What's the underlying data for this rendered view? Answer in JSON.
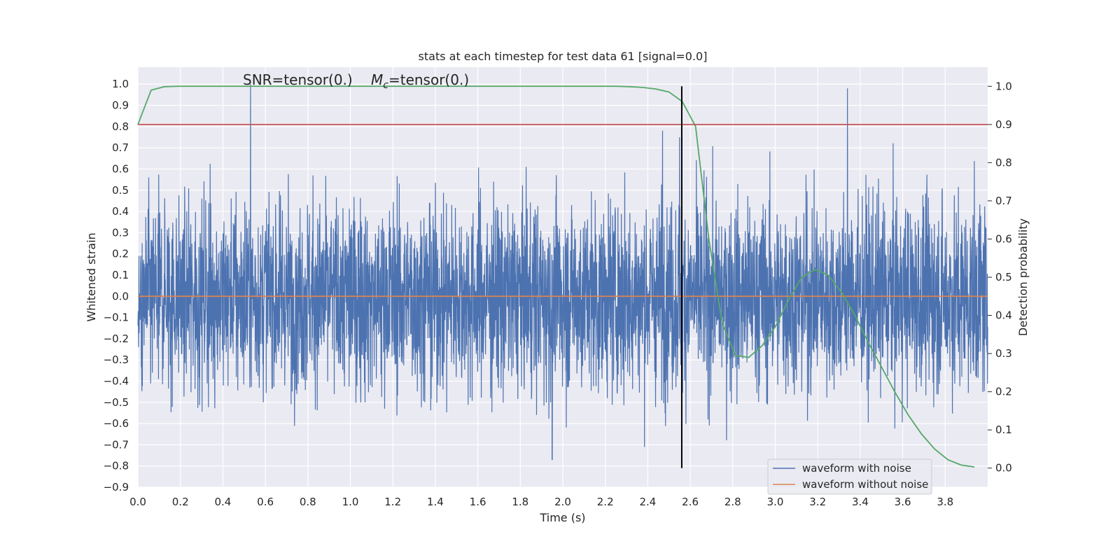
{
  "chart_data": {
    "type": "line",
    "title": "stats at each timestep for test data 61 [signal=0.0]",
    "xlabel": "Time (s)",
    "ylabel_left": "Whitened strain",
    "ylabel_right": "Detection probability",
    "annotation_snr": "SNR=tensor(0.)",
    "annotation_mc_symbol": "M",
    "annotation_mc_sub": "c",
    "annotation_mc_value": "=tensor(0.)",
    "xlim": [
      0.0,
      4.0
    ],
    "ylim_left": [
      -0.9,
      1.08
    ],
    "ylim_right": [
      -0.05,
      1.05
    ],
    "x_ticks": [
      "0.0",
      "0.2",
      "0.4",
      "0.6",
      "0.8",
      "1.0",
      "1.2",
      "1.4",
      "1.6",
      "1.8",
      "2.0",
      "2.2",
      "2.4",
      "2.6",
      "2.8",
      "3.0",
      "3.2",
      "3.4",
      "3.6",
      "3.8"
    ],
    "y_ticks_left": [
      "1.0",
      "0.9",
      "0.8",
      "0.7",
      "0.6",
      "0.5",
      "0.4",
      "0.3",
      "0.2",
      "0.1",
      "0.0",
      "−0.1",
      "−0.2",
      "−0.3",
      "−0.4",
      "−0.5",
      "−0.6",
      "−0.7",
      "−0.8",
      "−0.9"
    ],
    "y_ticks_right": [
      "1.0",
      "0.9",
      "0.8",
      "0.7",
      "0.6",
      "0.5",
      "0.4",
      "0.3",
      "0.2",
      "0.1",
      "0.0"
    ],
    "grid": true,
    "legend_position": "bottom-right",
    "series": [
      {
        "name": "waveform with noise",
        "color": "#4c72b0",
        "axis": "left",
        "style": "dense noise trace",
        "amplitude_typical": 0.3,
        "spikes": [
          {
            "t": 0.53,
            "y": 1.0
          },
          {
            "t": 3.34,
            "y": 0.98
          },
          {
            "t": 1.95,
            "y": -0.77
          },
          {
            "t": 2.55,
            "y": 0.75
          },
          {
            "t": 2.47,
            "y": 0.78
          }
        ]
      },
      {
        "name": "waveform without noise",
        "color": "#dd8452",
        "axis": "left",
        "x": [
          0.0,
          4.0
        ],
        "y": [
          0.0,
          0.0
        ]
      },
      {
        "color": "#55a868",
        "axis": "right",
        "x": [
          0.0,
          0.0625,
          0.125,
          0.1875,
          2.25,
          2.3125,
          2.375,
          2.4375,
          2.5,
          2.5625,
          2.625,
          2.6875,
          2.75,
          2.8125,
          2.875,
          2.9375,
          3.0,
          3.0625,
          3.125,
          3.1875,
          3.25,
          3.3125,
          3.375,
          3.4375,
          3.5,
          3.5625,
          3.625,
          3.6875,
          3.75,
          3.8125,
          3.875,
          3.9375
        ],
        "y": [
          0.9,
          0.99,
          0.999,
          1.0,
          1.0,
          0.999,
          0.997,
          0.993,
          0.985,
          0.96,
          0.895,
          0.6,
          0.38,
          0.295,
          0.29,
          0.32,
          0.37,
          0.44,
          0.5,
          0.52,
          0.505,
          0.46,
          0.4,
          0.33,
          0.265,
          0.2,
          0.14,
          0.09,
          0.05,
          0.022,
          0.008,
          0.003
        ]
      },
      {
        "color": "#c44e52",
        "axis": "right",
        "x": [
          0.0,
          4.0
        ],
        "y": [
          0.9,
          0.9
        ]
      }
    ],
    "vertical_marker_t": 2.56
  }
}
